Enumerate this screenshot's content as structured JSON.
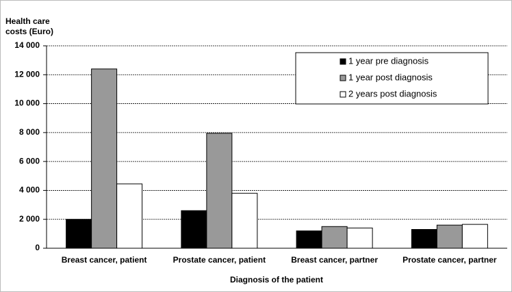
{
  "chart_data": {
    "type": "bar",
    "y_label": [
      "Health care",
      "costs (Euro)"
    ],
    "x_label": "Diagnosis of the patient",
    "categories": [
      "Breast cancer, patient",
      "Prostate cancer, patient",
      "Breast cancer, partner",
      "Prostate cancer, partner"
    ],
    "series": [
      {
        "name": "1 year pre diagnosis",
        "color": "#000000",
        "values": [
          2000,
          2600,
          1200,
          1300
        ]
      },
      {
        "name": "1 year post diagnosis",
        "color": "#999999",
        "values": [
          12400,
          7950,
          1500,
          1600
        ]
      },
      {
        "name": "2 years post diagnosis",
        "color": "#ffffff",
        "values": [
          4450,
          3800,
          1400,
          1650
        ]
      }
    ],
    "ylim": [
      0,
      14000
    ],
    "yticks": [
      0,
      {
        "value": 2000,
        "label": "2 000"
      },
      {
        "value": 4000,
        "label": "4 000"
      },
      {
        "value": 6000,
        "label": "6 000"
      },
      {
        "value": 8000,
        "label": "8 000"
      },
      {
        "value": 10000,
        "label": "10 000"
      },
      {
        "value": 12000,
        "label": "12 000"
      },
      {
        "value": 14000,
        "label": "14 000"
      }
    ],
    "grid": true,
    "legend": "upper right"
  }
}
